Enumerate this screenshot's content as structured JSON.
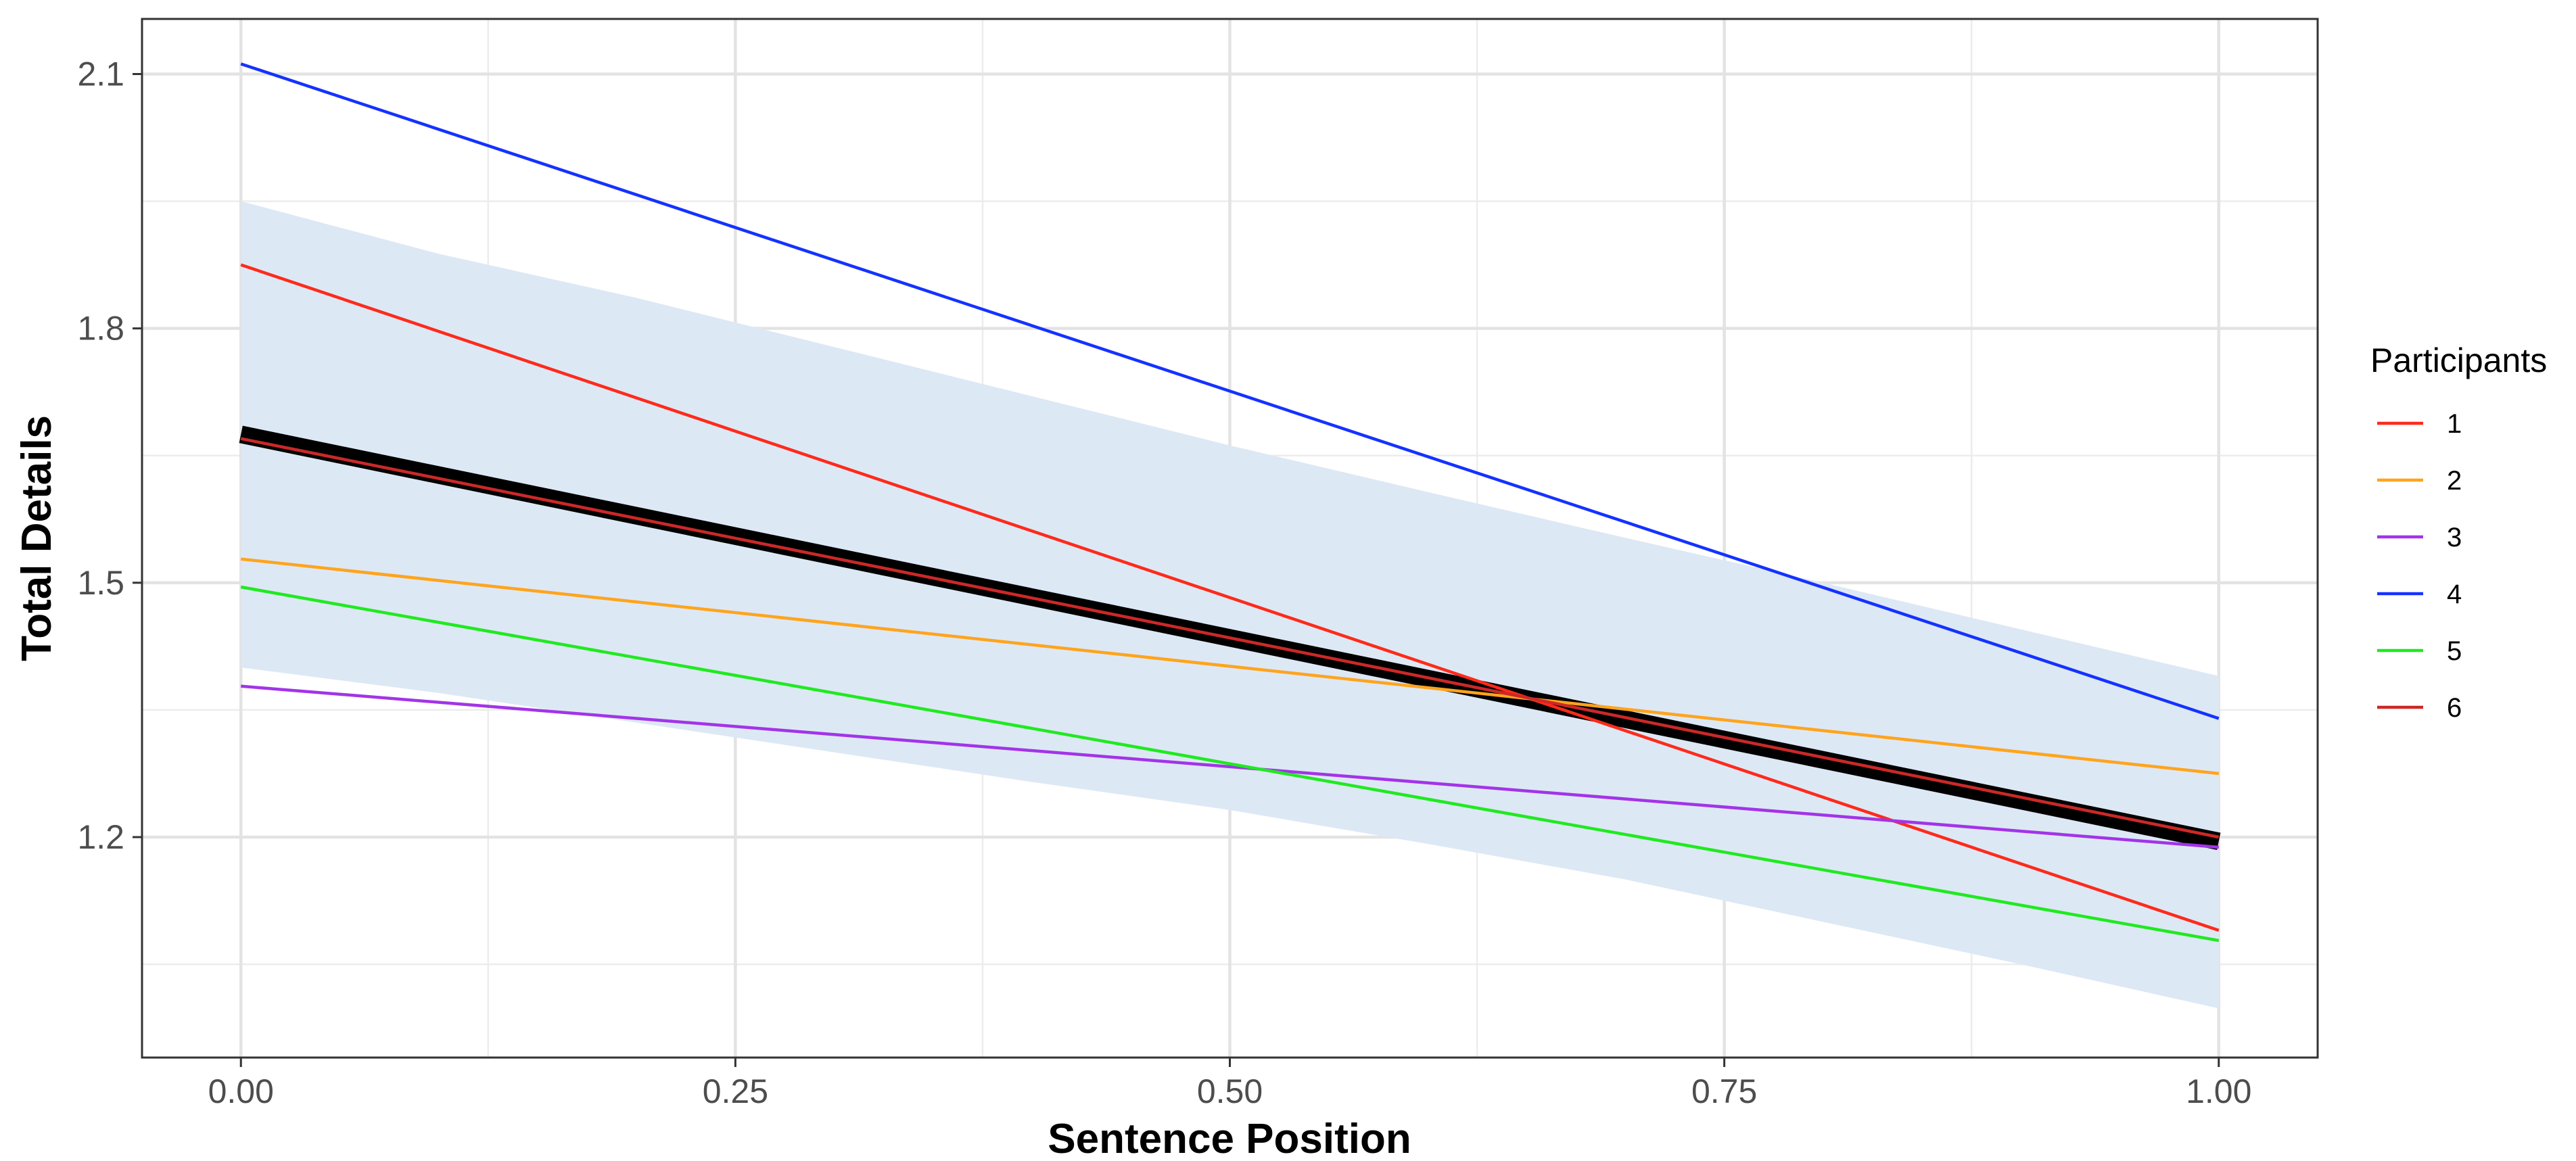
{
  "chart_data": {
    "type": "line",
    "title": "",
    "xlabel": "Sentence Position",
    "ylabel": "Total Details",
    "xlim": [
      -0.05,
      1.05
    ],
    "ylim": [
      0.94,
      2.165
    ],
    "x_ticks": [
      {
        "value": 0.0,
        "label": "0.00"
      },
      {
        "value": 0.25,
        "label": "0.25"
      },
      {
        "value": 0.5,
        "label": "0.50"
      },
      {
        "value": 0.75,
        "label": "0.75"
      },
      {
        "value": 1.0,
        "label": "1.00"
      }
    ],
    "x_minor": [
      0.125,
      0.375,
      0.625,
      0.875
    ],
    "y_ticks": [
      {
        "value": 1.2,
        "label": "1.2"
      },
      {
        "value": 1.5,
        "label": "1.5"
      },
      {
        "value": 1.8,
        "label": "1.8"
      },
      {
        "value": 2.1,
        "label": "2.1"
      }
    ],
    "y_minor": [
      1.05,
      1.35,
      1.65,
      1.95
    ],
    "grid": true,
    "legend": {
      "title": "Participants",
      "position": "right"
    },
    "confidence_band": {
      "color": "#dde8f5",
      "x": [
        0.0,
        0.1,
        0.2,
        0.3,
        0.4,
        0.5,
        0.6,
        0.7,
        0.8,
        0.9,
        1.0
      ],
      "upper": [
        1.95,
        1.888,
        1.836,
        1.778,
        1.72,
        1.662,
        1.607,
        1.553,
        1.5,
        1.445,
        1.39
      ],
      "lower": [
        1.4,
        1.37,
        1.335,
        1.3,
        1.265,
        1.232,
        1.192,
        1.15,
        1.1,
        1.05,
        0.998
      ]
    },
    "overall_fit": {
      "x": [
        0.0,
        1.0
      ],
      "y": [
        1.675,
        1.195
      ],
      "color": "#000000"
    },
    "series": [
      {
        "name": "1",
        "color": "#ff2a1a",
        "x": [
          0.0,
          1.0
        ],
        "y": [
          1.875,
          1.09
        ]
      },
      {
        "name": "2",
        "color": "#ffa41c",
        "x": [
          0.0,
          1.0
        ],
        "y": [
          1.528,
          1.275
        ]
      },
      {
        "name": "3",
        "color": "#a234e8",
        "x": [
          0.0,
          1.0
        ],
        "y": [
          1.378,
          1.188
        ]
      },
      {
        "name": "4",
        "color": "#1432ff",
        "x": [
          0.0,
          1.0
        ],
        "y": [
          2.112,
          1.34
        ]
      },
      {
        "name": "5",
        "color": "#1fea1f",
        "x": [
          0.0,
          1.0
        ],
        "y": [
          1.495,
          1.078
        ]
      },
      {
        "name": "6",
        "color": "#cc2828",
        "x": [
          0.0,
          1.0
        ],
        "y": [
          1.67,
          1.2
        ]
      }
    ]
  }
}
